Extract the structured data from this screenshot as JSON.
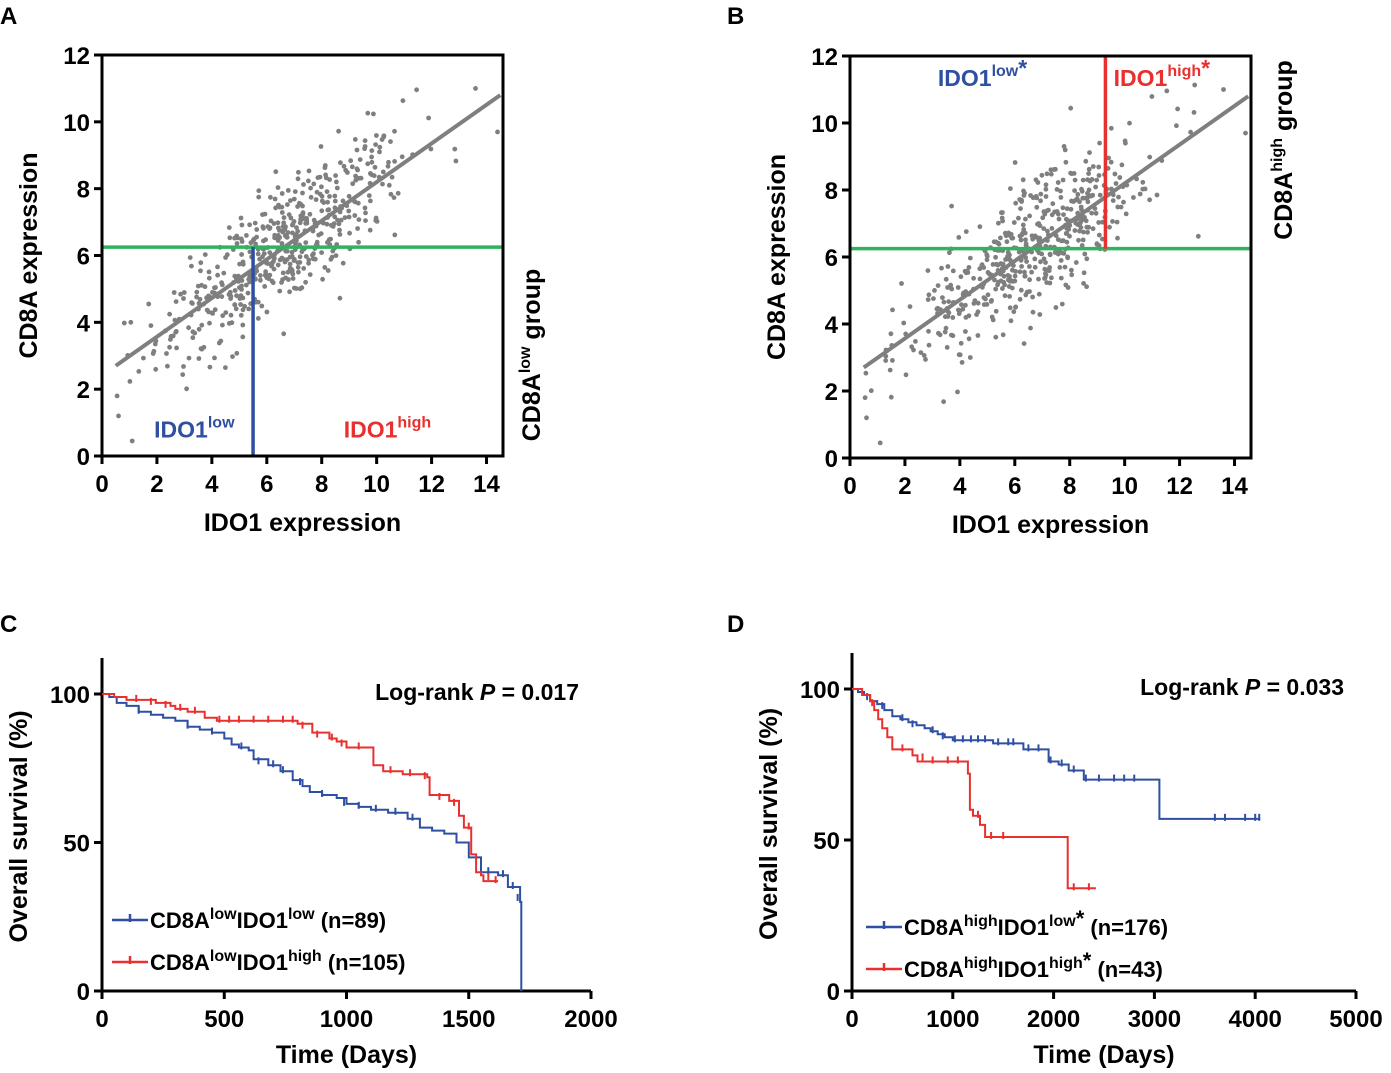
{
  "colors": {
    "axis": "#000000",
    "points": "#7f7f7f",
    "fit": "#7f7f7f",
    "threshold": "#2fb35e",
    "blue": "#2f4fa2",
    "red": "#e8312f"
  },
  "chart_data": [
    {
      "panel": "A",
      "type": "scatter",
      "xlabel": "IDO1 expression",
      "ylabel": "CD8A expression",
      "side_label": {
        "base": "CD8A",
        "sup": "low",
        "tail": " group"
      },
      "xlim": [
        0,
        14.6
      ],
      "ylim": [
        0,
        12
      ],
      "xticks": [
        "0",
        "2",
        "4",
        "6",
        "8",
        "10",
        "12",
        "14"
      ],
      "yticks": [
        "0",
        "2",
        "4",
        "6",
        "8",
        "10",
        "12"
      ],
      "fit_line": [
        [
          0.5,
          2.7
        ],
        [
          14.5,
          10.8
        ]
      ],
      "cd8a_threshold": 6.25,
      "ido1_threshold": {
        "x": 5.5,
        "y_from": 0,
        "y_to": 6.25,
        "color": "blue"
      },
      "annotations": [
        {
          "base": "IDO1",
          "sup": "low",
          "star": "",
          "x": 1.9,
          "y": 0.55,
          "color": "blue"
        },
        {
          "base": "IDO1",
          "sup": "high",
          "star": "",
          "x": 8.8,
          "y": 0.55,
          "color": "red"
        }
      ],
      "n_points_approx": 520
    },
    {
      "panel": "B",
      "type": "scatter",
      "xlabel": "IDO1 expression",
      "ylabel": "CD8A expression",
      "side_label": {
        "base": "CD8A",
        "sup": "high",
        "tail": " group"
      },
      "xlim": [
        0,
        14.6
      ],
      "ylim": [
        0,
        12
      ],
      "xticks": [
        "0",
        "2",
        "4",
        "6",
        "8",
        "10",
        "12",
        "14"
      ],
      "yticks": [
        "0",
        "2",
        "4",
        "6",
        "8",
        "10",
        "12"
      ],
      "fit_line": [
        [
          0.5,
          2.7
        ],
        [
          14.5,
          10.8
        ]
      ],
      "cd8a_threshold": 6.25,
      "ido1_threshold": {
        "x": 9.3,
        "y_from": 6.25,
        "y_to": 12,
        "color": "red"
      },
      "annotations": [
        {
          "base": "IDO1",
          "sup": "low",
          "star": "*",
          "x": 3.2,
          "y": 11.1,
          "color": "blue"
        },
        {
          "base": "IDO1",
          "sup": "high",
          "star": "*",
          "x": 9.6,
          "y": 11.1,
          "color": "red"
        }
      ],
      "n_points_approx": 520
    },
    {
      "panel": "C",
      "type": "line",
      "subtype": "kaplan-meier",
      "xlabel": "Time (Days)",
      "ylabel": "Overall survival (%)",
      "xlim": [
        0,
        2000
      ],
      "ylim": [
        0,
        100
      ],
      "xticks": [
        "0",
        "500",
        "1000",
        "1500",
        "2000"
      ],
      "yticks": [
        "0",
        "50",
        "100"
      ],
      "pvalue": {
        "prefix": "Log-rank ",
        "p": "P",
        "suffix": " = 0.017"
      },
      "series": [
        {
          "name": {
            "base": "CD8A",
            "sup1": "low",
            "mid": "IDO1",
            "sup2": "low",
            "star": "",
            "n": " (n=89)"
          },
          "color": "blue",
          "steps": [
            [
              0,
              100
            ],
            [
              30,
              99
            ],
            [
              60,
              97
            ],
            [
              100,
              96
            ],
            [
              150,
              94
            ],
            [
              200,
              93
            ],
            [
              250,
              92
            ],
            [
              300,
              91
            ],
            [
              350,
              89
            ],
            [
              400,
              88
            ],
            [
              450,
              87
            ],
            [
              500,
              85
            ],
            [
              530,
              83
            ],
            [
              560,
              82
            ],
            [
              600,
              81
            ],
            [
              620,
              78
            ],
            [
              680,
              76
            ],
            [
              730,
              74
            ],
            [
              780,
              71
            ],
            [
              820,
              69
            ],
            [
              850,
              67
            ],
            [
              900,
              66
            ],
            [
              960,
              65
            ],
            [
              1000,
              63
            ],
            [
              1050,
              62
            ],
            [
              1100,
              61
            ],
            [
              1170,
              60
            ],
            [
              1250,
              58
            ],
            [
              1300,
              55
            ],
            [
              1350,
              54
            ],
            [
              1400,
              53
            ],
            [
              1450,
              50
            ],
            [
              1500,
              45
            ],
            [
              1550,
              40
            ],
            [
              1620,
              39
            ],
            [
              1660,
              35
            ],
            [
              1710,
              30
            ],
            [
              1715,
              0
            ]
          ],
          "censors": [
            [
              150,
              94
            ],
            [
              350,
              89
            ],
            [
              450,
              87
            ],
            [
              570,
              82
            ],
            [
              640,
              77
            ],
            [
              700,
              76
            ],
            [
              740,
              74
            ],
            [
              810,
              70
            ],
            [
              900,
              66
            ],
            [
              990,
              63
            ],
            [
              1050,
              62
            ],
            [
              1120,
              61
            ],
            [
              1200,
              60
            ],
            [
              1270,
              58
            ],
            [
              1580,
              40
            ],
            [
              1640,
              39
            ],
            [
              1680,
              35
            ],
            [
              1700,
              31
            ]
          ]
        },
        {
          "name": {
            "base": "CD8A",
            "sup1": "low",
            "mid": "IDO1",
            "sup2": "high",
            "star": "",
            "n": " (n=105)"
          },
          "color": "red",
          "steps": [
            [
              0,
              100
            ],
            [
              50,
              99
            ],
            [
              100,
              98
            ],
            [
              220,
              97
            ],
            [
              280,
              96
            ],
            [
              300,
              95
            ],
            [
              350,
              94
            ],
            [
              420,
              92
            ],
            [
              470,
              91
            ],
            [
              550,
              91
            ],
            [
              770,
              91
            ],
            [
              800,
              90
            ],
            [
              860,
              87
            ],
            [
              930,
              85
            ],
            [
              960,
              84
            ],
            [
              1000,
              82
            ],
            [
              1100,
              82
            ],
            [
              1110,
              76
            ],
            [
              1150,
              74
            ],
            [
              1230,
              73
            ],
            [
              1330,
              72
            ],
            [
              1340,
              66
            ],
            [
              1420,
              64
            ],
            [
              1460,
              59
            ],
            [
              1480,
              55
            ],
            [
              1510,
              46
            ],
            [
              1530,
              40
            ],
            [
              1550,
              39
            ],
            [
              1560,
              37
            ],
            [
              1620,
              37
            ]
          ],
          "censors": [
            [
              140,
              98
            ],
            [
              200,
              97
            ],
            [
              260,
              96
            ],
            [
              320,
              95
            ],
            [
              380,
              94
            ],
            [
              480,
              91
            ],
            [
              520,
              91
            ],
            [
              560,
              91
            ],
            [
              620,
              91
            ],
            [
              680,
              91
            ],
            [
              740,
              91
            ],
            [
              780,
              91
            ],
            [
              820,
              89
            ],
            [
              880,
              86
            ],
            [
              940,
              85
            ],
            [
              980,
              83
            ],
            [
              1050,
              82
            ],
            [
              1180,
              74
            ],
            [
              1260,
              73
            ],
            [
              1320,
              72
            ],
            [
              1380,
              65
            ],
            [
              1440,
              63
            ],
            [
              1500,
              55
            ],
            [
              1580,
              38
            ],
            [
              1610,
              37
            ]
          ]
        }
      ]
    },
    {
      "panel": "D",
      "type": "line",
      "subtype": "kaplan-meier",
      "xlabel": "Time (Days)",
      "ylabel": "Overall survival (%)",
      "xlim": [
        0,
        5000
      ],
      "ylim": [
        0,
        100
      ],
      "xticks": [
        "0",
        "1000",
        "2000",
        "3000",
        "4000",
        "5000"
      ],
      "yticks": [
        "0",
        "50",
        "100"
      ],
      "pvalue": {
        "prefix": "Log-rank ",
        "p": "P",
        "suffix": " = 0.033"
      },
      "series": [
        {
          "name": {
            "base": "CD8A",
            "sup1": "high",
            "mid": "IDO1",
            "sup2": "low",
            "star": "*",
            "n": " (n=176)"
          },
          "color": "blue",
          "steps": [
            [
              0,
              100
            ],
            [
              60,
              99
            ],
            [
              120,
              98
            ],
            [
              180,
              96
            ],
            [
              250,
              95
            ],
            [
              320,
              93
            ],
            [
              400,
              91
            ],
            [
              480,
              90
            ],
            [
              560,
              89
            ],
            [
              640,
              88
            ],
            [
              720,
              87
            ],
            [
              780,
              86
            ],
            [
              850,
              85
            ],
            [
              920,
              84
            ],
            [
              1000,
              83
            ],
            [
              1350,
              83
            ],
            [
              1400,
              82
            ],
            [
              1650,
              82
            ],
            [
              1700,
              80
            ],
            [
              1900,
              80
            ],
            [
              1950,
              76
            ],
            [
              2000,
              76
            ],
            [
              2050,
              75
            ],
            [
              2100,
              75
            ],
            [
              2150,
              73
            ],
            [
              2250,
              73
            ],
            [
              2300,
              70
            ],
            [
              3000,
              70
            ],
            [
              3050,
              57
            ],
            [
              4050,
              57
            ]
          ],
          "censors": [
            [
              150,
              97
            ],
            [
              300,
              94
            ],
            [
              500,
              90
            ],
            [
              600,
              88
            ],
            [
              800,
              86
            ],
            [
              900,
              84
            ],
            [
              1020,
              83
            ],
            [
              1100,
              83
            ],
            [
              1180,
              83
            ],
            [
              1250,
              83
            ],
            [
              1320,
              83
            ],
            [
              1450,
              82
            ],
            [
              1550,
              82
            ],
            [
              1600,
              82
            ],
            [
              1750,
              80
            ],
            [
              1850,
              80
            ],
            [
              1970,
              76
            ],
            [
              2080,
              75
            ],
            [
              2200,
              73
            ],
            [
              2320,
              70
            ],
            [
              2450,
              70
            ],
            [
              2600,
              70
            ],
            [
              2700,
              70
            ],
            [
              2800,
              70
            ],
            [
              3600,
              57
            ],
            [
              3700,
              57
            ],
            [
              3900,
              57
            ],
            [
              4000,
              57
            ],
            [
              4040,
              57
            ]
          ]
        },
        {
          "name": {
            "base": "CD8A",
            "sup1": "high",
            "mid": "IDO1",
            "sup2": "high",
            "star": "*",
            "n": " (n=43)"
          },
          "color": "red",
          "steps": [
            [
              0,
              100
            ],
            [
              100,
              98
            ],
            [
              180,
              96
            ],
            [
              220,
              93
            ],
            [
              260,
              90
            ],
            [
              300,
              87
            ],
            [
              350,
              84
            ],
            [
              400,
              80
            ],
            [
              600,
              78
            ],
            [
              650,
              76
            ],
            [
              1150,
              72
            ],
            [
              1170,
              60
            ],
            [
              1200,
              58
            ],
            [
              1270,
              55
            ],
            [
              1320,
              51
            ],
            [
              2100,
              51
            ],
            [
              2140,
              34
            ],
            [
              2420,
              34
            ]
          ],
          "censors": [
            [
              200,
              95
            ],
            [
              500,
              80
            ],
            [
              700,
              77
            ],
            [
              800,
              76
            ],
            [
              950,
              76
            ],
            [
              1050,
              76
            ],
            [
              1250,
              58
            ],
            [
              1380,
              51
            ],
            [
              1500,
              51
            ],
            [
              2200,
              34
            ],
            [
              2350,
              34
            ]
          ]
        }
      ]
    }
  ]
}
